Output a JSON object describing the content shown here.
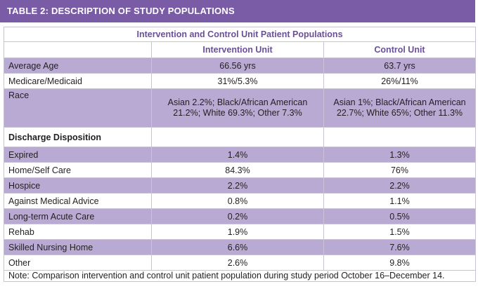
{
  "title": "TABLE 2: DESCRIPTION OF STUDY POPULATIONS",
  "caption": "Intervention and Control Unit Patient Populations",
  "columns": [
    "",
    "Intervention Unit",
    "Control Unit"
  ],
  "rows": [
    {
      "label": "Average Age",
      "intervention": "66.56 yrs",
      "control": "63.7 yrs"
    },
    {
      "label": "Medicare/Medicaid",
      "intervention": "31%/5.3%",
      "control": "26%/11%"
    },
    {
      "label": "Race",
      "intervention": "Asian 2.2%; Black/African American 21.2%; White 69.3%; Other 7.3%",
      "control": "Asian 1%; Black/African American 22.7%; White 65%; Other 11.3%"
    },
    {
      "label": "Discharge Disposition",
      "intervention": "",
      "control": ""
    },
    {
      "label": "Expired",
      "intervention": "1.4%",
      "control": "1.3%"
    },
    {
      "label": "Home/Self Care",
      "intervention": "84.3%",
      "control": "76%"
    },
    {
      "label": "Hospice",
      "intervention": "2.2%",
      "control": "2.2%"
    },
    {
      "label": "Against Medical Advice",
      "intervention": "0.8%",
      "control": "1.1%"
    },
    {
      "label": "Long-term Acute Care",
      "intervention": "0.2%",
      "control": "0.5%"
    },
    {
      "label": "Rehab",
      "intervention": "1.9%",
      "control": "1.5%"
    },
    {
      "label": "Skilled Nursing Home",
      "intervention": "6.6%",
      "control": "7.6%"
    },
    {
      "label": "Other",
      "intervention": "2.6%",
      "control": "9.8%"
    }
  ],
  "note": "Note: Comparison intervention and control unit patient population during study period October 16–December 14.",
  "colors": {
    "title_bar": "#7a5ba5",
    "row_shade": "#b9aad4",
    "header_text": "#6b4f99"
  }
}
